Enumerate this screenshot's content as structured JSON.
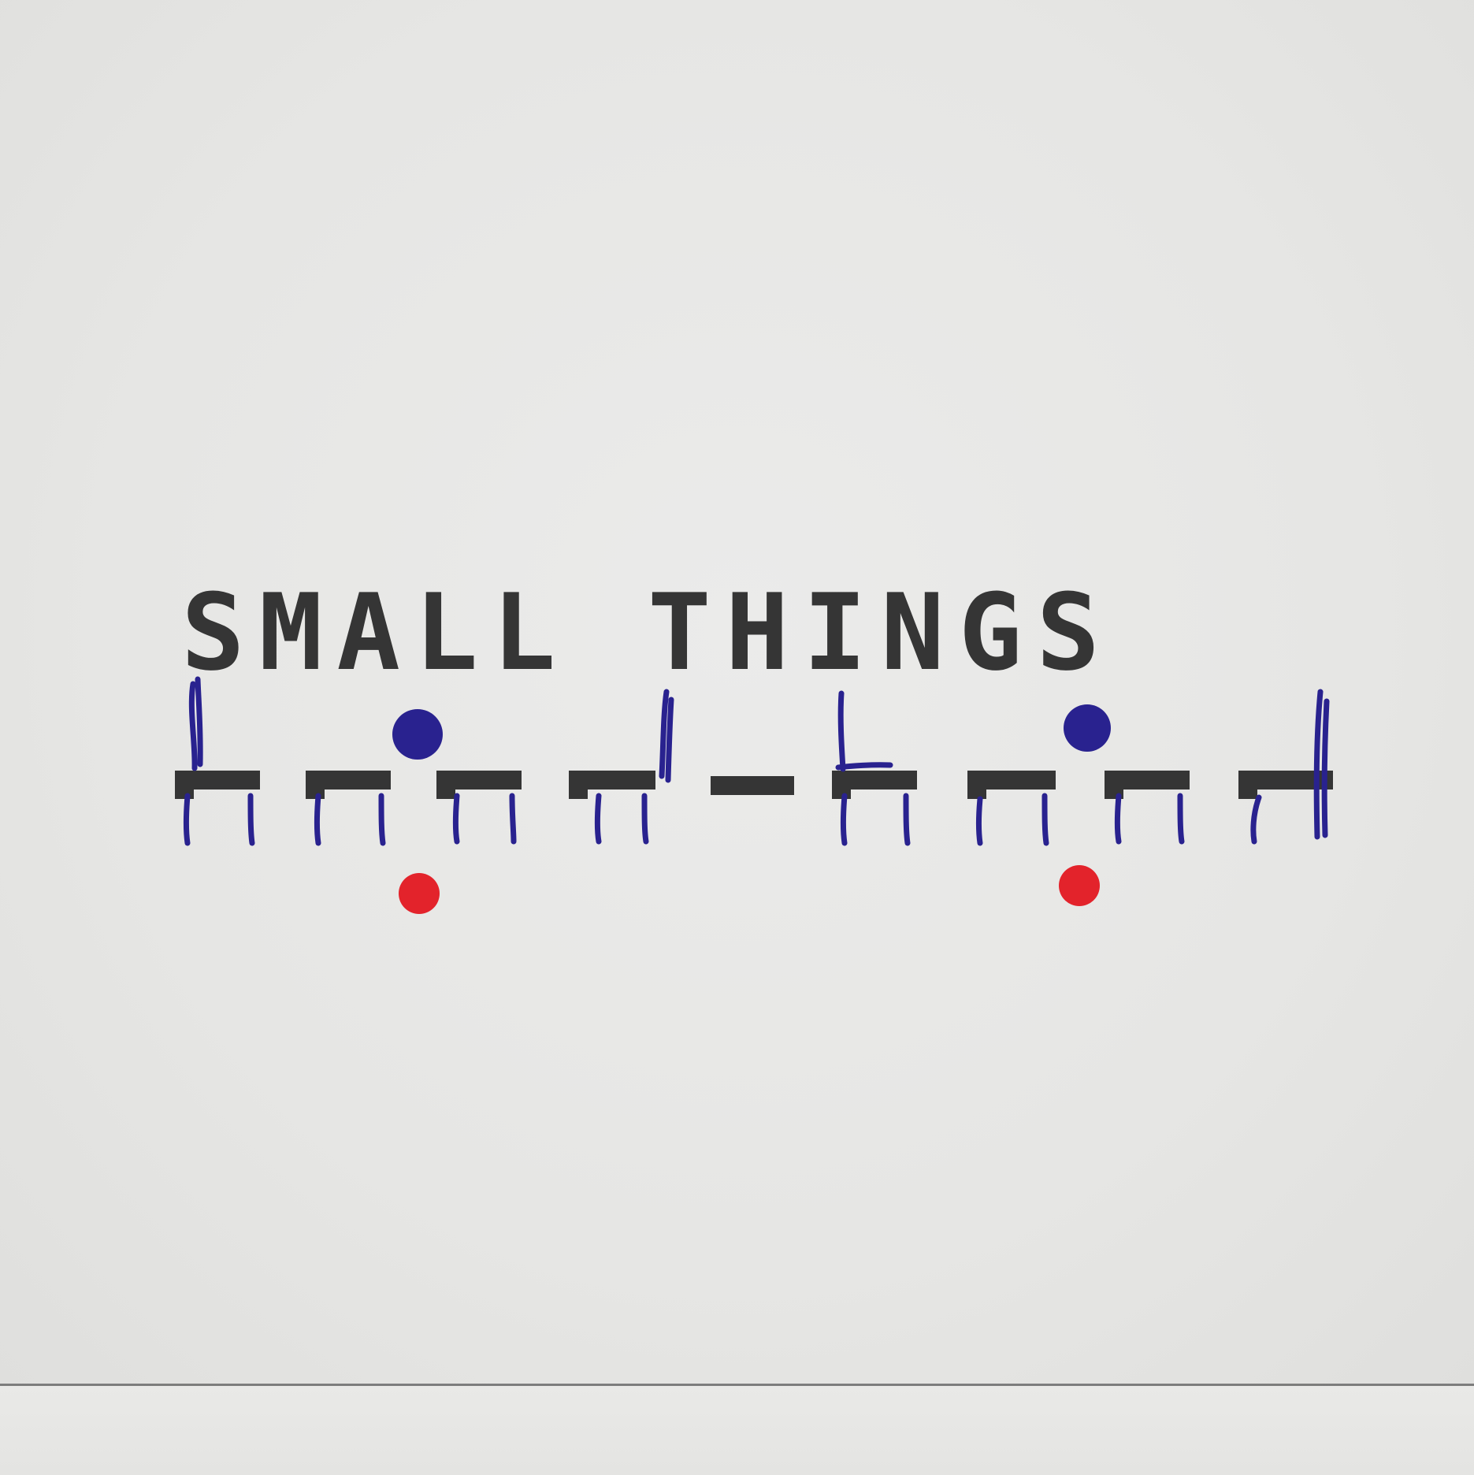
{
  "logo": {
    "wordmark": "SMALL THINGS"
  },
  "colors": {
    "paper": "#e8e8e6",
    "ink_black": "#353535",
    "ink_blue": "#29228f",
    "ink_red": "#e3232b"
  },
  "icons": {
    "hand_drawn_marks": "handwritten-mark-icon",
    "blue_dot": "dot-icon",
    "red_dot": "dot-icon"
  }
}
